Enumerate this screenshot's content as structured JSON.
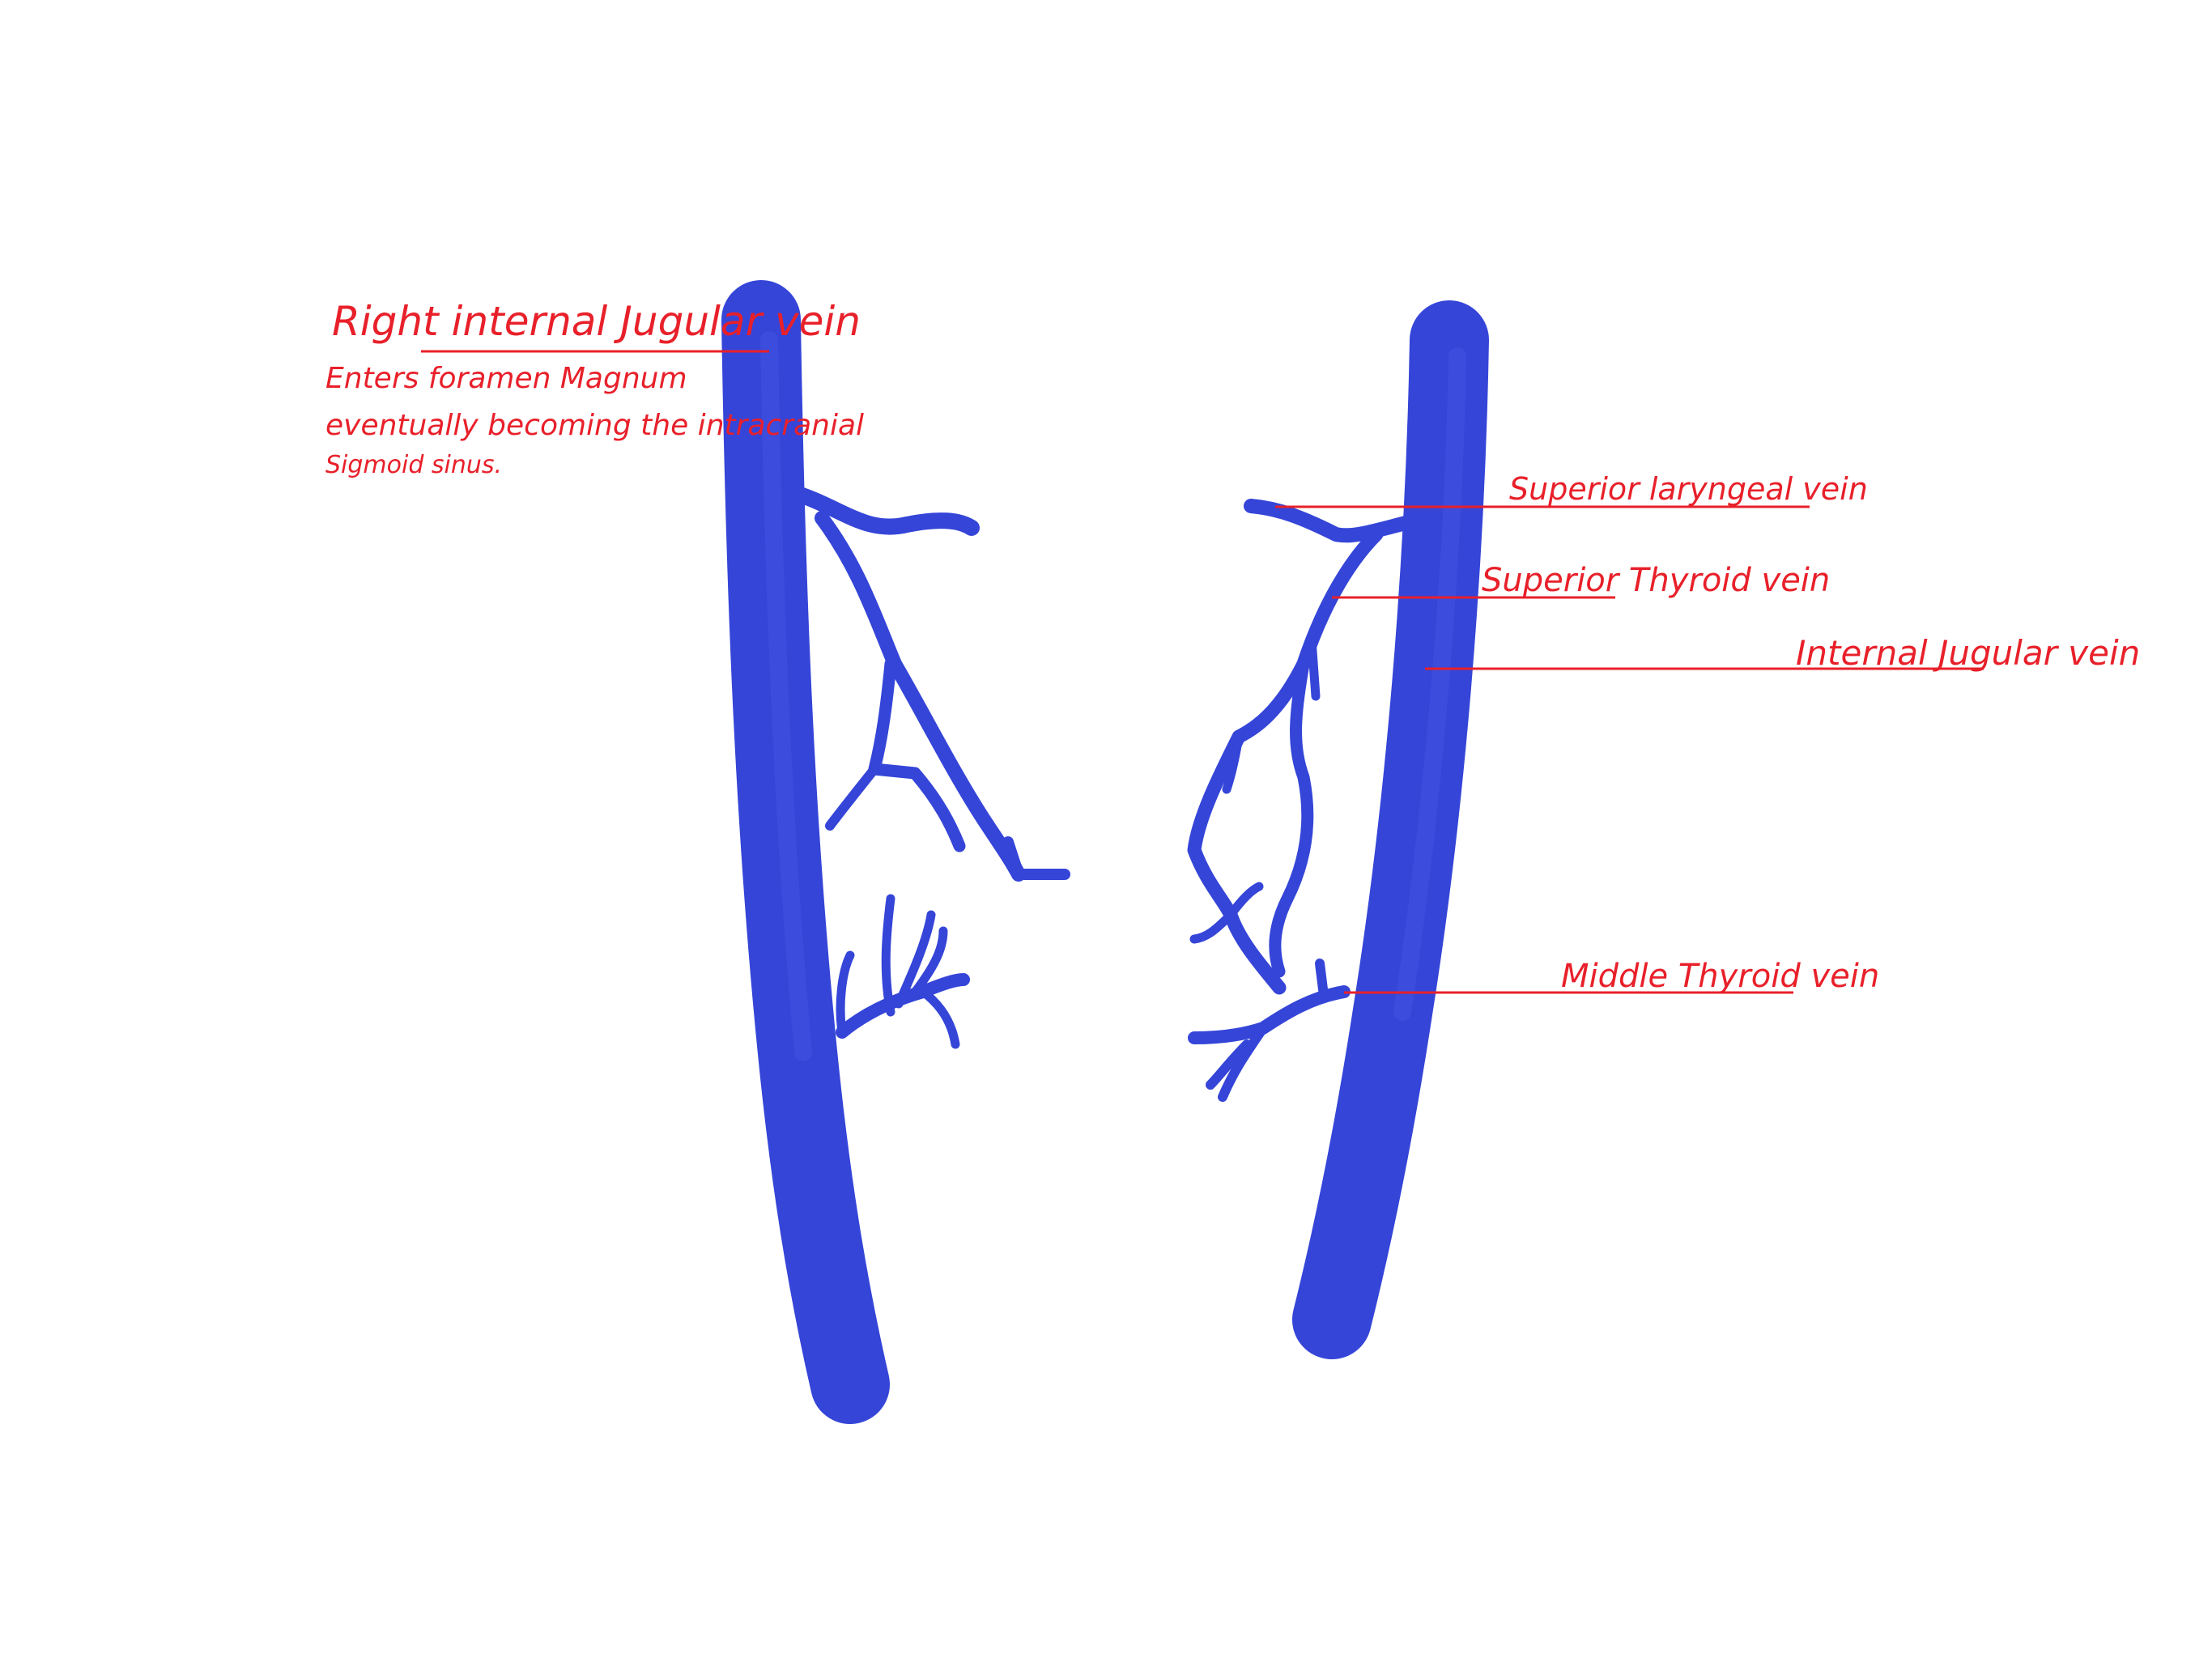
{
  "colors": {
    "vein": "#3545d8",
    "vein_light": "#4a5ae6",
    "label": "#e8202a",
    "background": "#ffffff"
  },
  "labels": {
    "right_internal_jugular": "Right internal Jugular vein",
    "note_line_1": "Enters foramen Magnum",
    "note_line_2": "eventually becoming the intracranial",
    "note_line_3": "Sigmoid sinus.",
    "superior_laryngeal": "Superior laryngeal vein",
    "superior_thyroid": "Superior Thyroid vein",
    "internal_jugular": "Internal Jugular vein",
    "middle_thyroid": "Middle Thyroid vein"
  }
}
